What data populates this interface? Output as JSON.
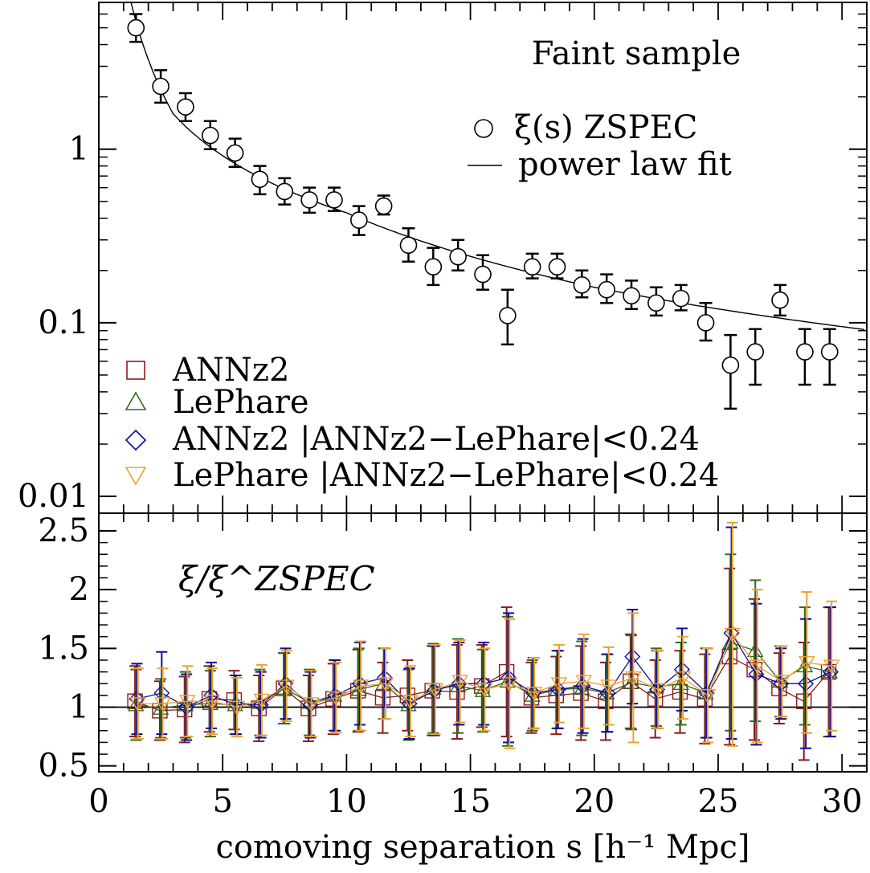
{
  "chart_data": [
    {
      "type": "scatter",
      "yscale": "log",
      "title": "Faint sample",
      "xlim": [
        0,
        31
      ],
      "ylim": [
        0.008,
        7
      ],
      "xticks": [
        0,
        5,
        10,
        15,
        20,
        25,
        30
      ],
      "yticks": [
        0.01,
        0.1,
        1
      ],
      "ytick_labels": [
        "0.01",
        "0.1",
        "1"
      ],
      "legend_top": [
        "ξ(s) ZSPEC",
        "power law fit"
      ],
      "legend_bottom": [
        "ANNz2",
        "LePhare",
        "ANNz2 |ANNz2−LePhare|<0.24",
        "LePhare |ANNz2−LePhare|<0.24"
      ],
      "legend_bottom_colors": [
        "#8b1a1a",
        "#2e6b1e",
        "#0a0aa0",
        "#f0a030"
      ],
      "series": [
        {
          "name": "ξ(s) ZSPEC",
          "x": [
            1.5,
            2.5,
            3.5,
            4.5,
            5.5,
            6.5,
            7.5,
            8.5,
            9.5,
            10.5,
            11.5,
            12.5,
            13.5,
            14.5,
            15.5,
            16.5,
            17.5,
            18.5,
            19.5,
            20.5,
            21.5,
            22.5,
            23.5,
            24.5,
            25.5,
            26.5,
            27.5,
            28.5,
            29.5
          ],
          "y": [
            5.0,
            2.3,
            1.75,
            1.2,
            0.95,
            0.67,
            0.57,
            0.51,
            0.51,
            0.39,
            0.47,
            0.28,
            0.21,
            0.24,
            0.19,
            0.11,
            0.21,
            0.21,
            0.165,
            0.155,
            0.143,
            0.13,
            0.138,
            0.1,
            0.057,
            0.068,
            0.135,
            0.068,
            0.068
          ],
          "yerr_low": [
            4.15,
            1.85,
            1.45,
            1.0,
            0.79,
            0.55,
            0.48,
            0.43,
            0.44,
            0.32,
            0.42,
            0.225,
            0.165,
            0.2,
            0.155,
            0.075,
            0.18,
            0.18,
            0.14,
            0.13,
            0.12,
            0.11,
            0.118,
            0.079,
            0.032,
            0.044,
            0.11,
            0.044,
            0.044
          ],
          "yerr_high": [
            6.0,
            2.85,
            2.1,
            1.45,
            1.15,
            0.8,
            0.68,
            0.6,
            0.6,
            0.47,
            0.54,
            0.35,
            0.27,
            0.3,
            0.245,
            0.155,
            0.25,
            0.25,
            0.2,
            0.19,
            0.175,
            0.16,
            0.165,
            0.13,
            0.085,
            0.092,
            0.165,
            0.092,
            0.092
          ]
        },
        {
          "name": "power law fit",
          "fit_points": [
            [
              1.3,
              7.0
            ],
            [
              3,
              1.6
            ],
            [
              10,
              0.43
            ],
            [
              20,
              0.16
            ],
            [
              30,
              0.095
            ]
          ]
        }
      ]
    },
    {
      "type": "line",
      "ylabel": "ξ/ξ^ZSPEC",
      "xlabel": "comoving separation s [h⁻¹ Mpc]",
      "xlim": [
        0,
        31
      ],
      "ylim": [
        0.45,
        2.65
      ],
      "xticks": [
        0,
        5,
        10,
        15,
        20,
        25,
        30
      ],
      "xtick_labels": [
        "0",
        "5",
        "10",
        "15",
        "20",
        "25",
        "30"
      ],
      "yticks": [
        0.5,
        1,
        1.5,
        2,
        2.5
      ],
      "ytick_labels": [
        "0.5",
        "1",
        "1.5",
        "2",
        "2.5"
      ],
      "reference_line": 1,
      "x": [
        1.5,
        2.5,
        3.5,
        4.5,
        5.5,
        6.5,
        7.5,
        8.5,
        9.5,
        10.5,
        11.5,
        12.5,
        13.5,
        14.5,
        15.5,
        16.5,
        17.5,
        18.5,
        19.5,
        20.5,
        21.5,
        22.5,
        23.5,
        24.5,
        25.5,
        26.5,
        27.5,
        28.5,
        29.5
      ],
      "series": [
        {
          "name": "ANNz2",
          "color": "#8b1a1a",
          "marker": "square",
          "values": [
            1.05,
            0.97,
            0.98,
            1.07,
            1.06,
            0.99,
            1.16,
            0.99,
            1.07,
            1.14,
            1.08,
            1.1,
            1.14,
            1.13,
            1.18,
            1.3,
            1.08,
            1.1,
            1.12,
            1.05,
            1.22,
            1.07,
            1.13,
            1.07,
            1.43,
            1.32,
            1.16,
            1.05,
            1.3
          ],
          "err": [
            0.3,
            0.25,
            0.28,
            0.28,
            0.25,
            0.28,
            0.3,
            0.28,
            0.3,
            0.35,
            0.3,
            0.3,
            0.38,
            0.4,
            0.35,
            0.55,
            0.3,
            0.33,
            0.4,
            0.33,
            0.4,
            0.33,
            0.35,
            0.38,
            0.75,
            0.6,
            0.3,
            0.5,
            0.55
          ]
        },
        {
          "name": "LePhare",
          "color": "#2e6b1e",
          "marker": "triangle",
          "values": [
            1.02,
            0.99,
            1.02,
            1.03,
            1.02,
            1.04,
            1.16,
            1.04,
            1.1,
            1.15,
            1.2,
            1.02,
            1.16,
            1.18,
            1.14,
            1.22,
            1.1,
            1.15,
            1.16,
            1.12,
            1.21,
            1.17,
            1.2,
            1.12,
            1.55,
            1.48,
            1.22,
            1.35,
            1.3
          ],
          "err": [
            0.3,
            0.25,
            0.28,
            0.28,
            0.25,
            0.28,
            0.3,
            0.28,
            0.3,
            0.35,
            0.3,
            0.3,
            0.38,
            0.4,
            0.35,
            0.55,
            0.3,
            0.33,
            0.4,
            0.33,
            0.4,
            0.33,
            0.35,
            0.38,
            0.75,
            0.6,
            0.3,
            0.5,
            0.55
          ]
        },
        {
          "name": "ANNz2 |ANNz2−LePhare|<0.24",
          "color": "#0a0aa0",
          "marker": "diamond",
          "values": [
            1.07,
            1.12,
            1.0,
            1.1,
            1.02,
            1.02,
            1.2,
            1.02,
            1.1,
            1.2,
            1.25,
            1.03,
            1.14,
            1.2,
            1.2,
            1.25,
            1.12,
            1.15,
            1.18,
            1.12,
            1.43,
            1.15,
            1.32,
            1.12,
            1.63,
            1.28,
            1.2,
            1.2,
            1.3
          ],
          "err": [
            0.3,
            0.35,
            0.28,
            0.28,
            0.25,
            0.28,
            0.3,
            0.28,
            0.3,
            0.35,
            0.25,
            0.3,
            0.38,
            0.35,
            0.35,
            0.55,
            0.3,
            0.33,
            0.4,
            0.33,
            0.4,
            0.33,
            0.35,
            0.38,
            0.9,
            0.6,
            0.3,
            0.55,
            0.55
          ]
        },
        {
          "name": "LePhare |ANNz2−LePhare|<0.24",
          "color": "#f0a030",
          "marker": "triangle-down",
          "values": [
            1.03,
            1.03,
            1.05,
            1.05,
            1.0,
            1.06,
            1.18,
            1.03,
            1.08,
            1.18,
            1.2,
            1.05,
            1.15,
            1.22,
            1.15,
            1.2,
            1.12,
            1.2,
            1.22,
            1.18,
            1.25,
            1.15,
            1.25,
            1.1,
            1.62,
            1.35,
            1.22,
            1.38,
            1.35
          ],
          "err": [
            0.3,
            0.3,
            0.3,
            0.28,
            0.25,
            0.3,
            0.3,
            0.28,
            0.3,
            0.38,
            0.3,
            0.3,
            0.38,
            0.35,
            0.35,
            0.55,
            0.3,
            0.33,
            0.4,
            0.33,
            0.55,
            0.33,
            0.35,
            0.4,
            0.95,
            0.65,
            0.3,
            0.6,
            0.55
          ]
        }
      ]
    }
  ]
}
